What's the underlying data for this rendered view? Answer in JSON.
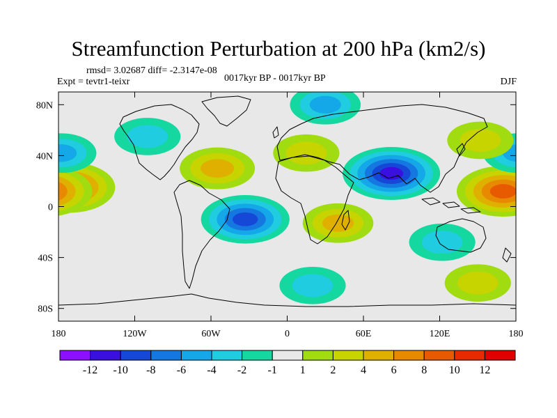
{
  "chart_data": {
    "type": "heatmap",
    "title": "Streamfunction Perturbation at 200 hPa (km2/s)",
    "stats": "rmsd= 3.02687 diff= -2.3147e-08",
    "experiment": "Expt = tevtr1-teixr",
    "period": "0017kyr BP - 0017kyr BP",
    "season": "DJF",
    "projection": "cylindrical equidistant, lon 180W-180E, lat 90S-90N",
    "x_ticks": [
      "180",
      "120W",
      "60W",
      "0",
      "60E",
      "120E",
      "180"
    ],
    "y_ticks": [
      "80N",
      "40N",
      "0",
      "40S",
      "80S"
    ],
    "contour_levels": [
      "-12",
      "-10",
      "-8",
      "-6",
      "-4",
      "-2",
      "-1",
      "1",
      "2",
      "4",
      "6",
      "8",
      "10",
      "12"
    ],
    "colorbar_colors": [
      "#8a10ff",
      "#3a10e0",
      "#1648d8",
      "#1478e0",
      "#14a8e8",
      "#20cce0",
      "#14d8a0",
      "#e8e8e8",
      "#a0dc10",
      "#c8d400",
      "#e0b000",
      "#e88a00",
      "#e85a00",
      "#e82a00",
      "#e00000"
    ],
    "anomalies": [
      {
        "name": "central-pacific-tropical-high",
        "lon": -172,
        "lat": 15,
        "value": 9
      },
      {
        "name": "western-pacific-tropical-high",
        "lon": 170,
        "lat": 12,
        "value": 9
      },
      {
        "name": "south-asia-low",
        "lon": 82,
        "lat": 26,
        "value": -10
      },
      {
        "name": "south-atlantic-low",
        "lon": -33,
        "lat": -10,
        "value": -8
      },
      {
        "name": "north-atlantic-high",
        "lon": -55,
        "lat": 30,
        "value": 5
      },
      {
        "name": "arctic-low",
        "lon": 30,
        "lat": 80,
        "value": -4
      },
      {
        "name": "north-america-low",
        "lon": -110,
        "lat": 55,
        "value": -3
      },
      {
        "name": "north-pacific-low",
        "lon": -178,
        "lat": 42,
        "value": -4
      },
      {
        "name": "east-asia-high",
        "lon": 152,
        "lat": 52,
        "value": 3
      },
      {
        "name": "europe-high",
        "lon": 15,
        "lat": 42,
        "value": 3
      },
      {
        "name": "southern-ocean-low",
        "lon": 20,
        "lat": -62,
        "value": -3
      },
      {
        "name": "east-africa-high",
        "lon": 40,
        "lat": -13,
        "value": 4
      },
      {
        "name": "australia-low",
        "lon": 122,
        "lat": -28,
        "value": -3
      },
      {
        "name": "south-pacific-high",
        "lon": 150,
        "lat": -60,
        "value": 3
      }
    ]
  }
}
